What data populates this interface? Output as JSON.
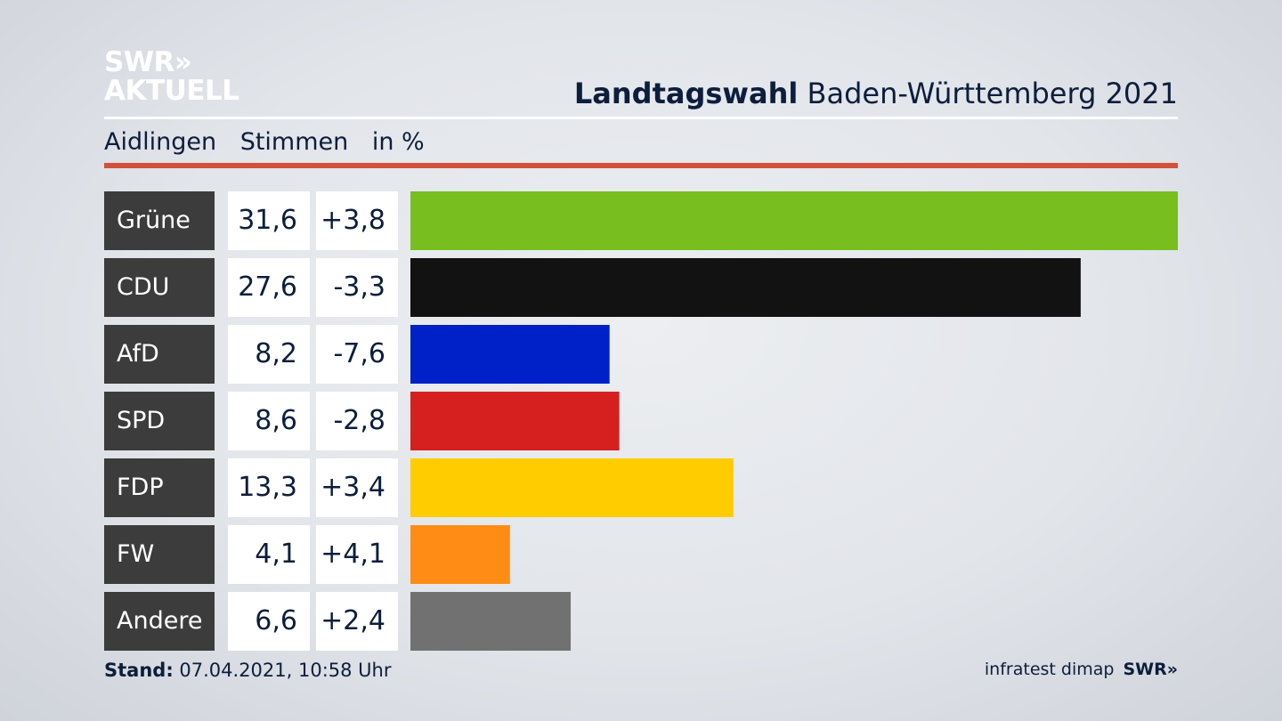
{
  "logo": {
    "line1": "SWR»",
    "line2": "AKTUELL"
  },
  "header": {
    "title_bold": "Landtagswahl",
    "title_rest": " Baden-Württemberg 2021"
  },
  "subheader": {
    "place": "Aidlingen",
    "metric": "Stimmen",
    "unit": "in %"
  },
  "footer": {
    "stand_label": "Stand:",
    "stand_value": " 07.04.2021, 10:58 Uhr",
    "source": "infratest dimap",
    "brand": "SWR»"
  },
  "chart_data": {
    "type": "bar",
    "orientation": "horizontal",
    "categories": [
      "Grüne",
      "CDU",
      "AfD",
      "SPD",
      "FDP",
      "FW",
      "Andere"
    ],
    "values": [
      31.6,
      27.6,
      8.2,
      8.6,
      13.3,
      4.1,
      6.6
    ],
    "value_labels": [
      "31,6",
      "27,6",
      "8,2",
      "8,6",
      "13,3",
      "4,1",
      "6,6"
    ],
    "changes": [
      "+3,8",
      "-3,3",
      "-7,6",
      "-2,8",
      "+3,4",
      "+4,1",
      "+2,4"
    ],
    "colors": [
      "#78be1e",
      "#121212",
      "#0021c8",
      "#d61f1f",
      "#ffcc00",
      "#ff8c14",
      "#717171"
    ],
    "xlim": [
      0,
      31.6
    ]
  }
}
